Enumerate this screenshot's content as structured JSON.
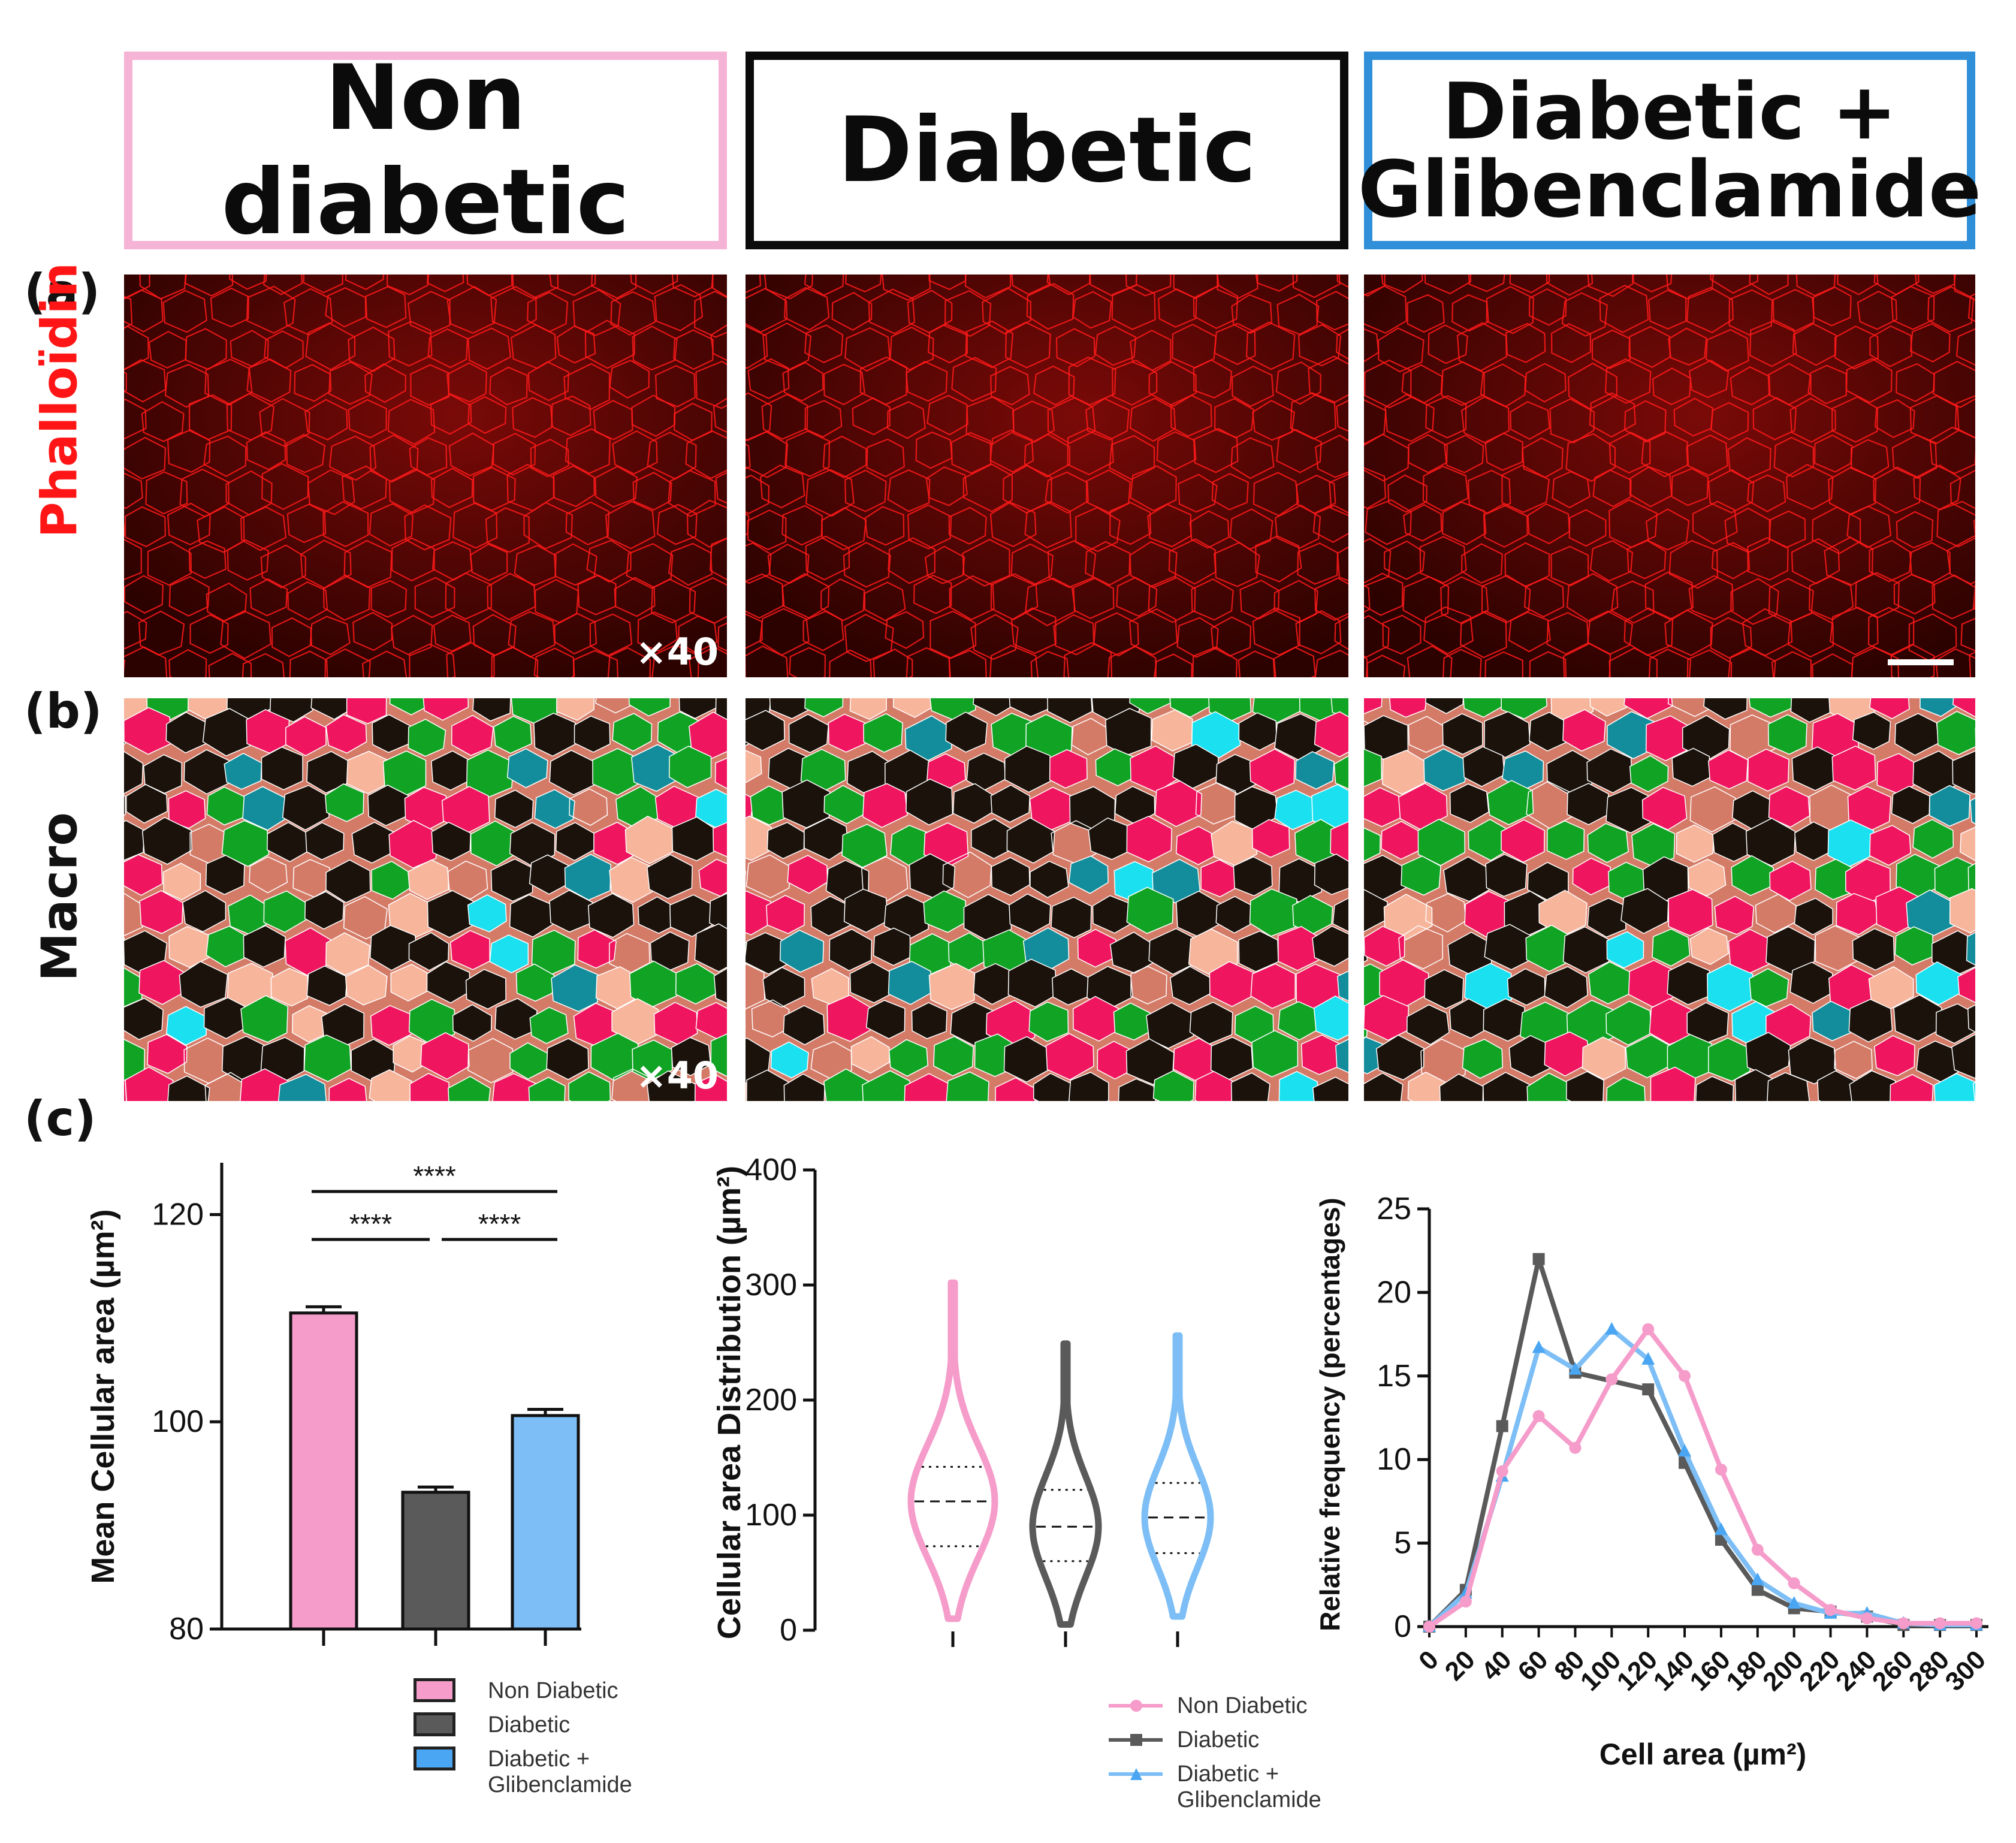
{
  "headers": [
    "Non diabetic",
    "Diabetic",
    "Diabetic +\nGlibenclamide"
  ],
  "panel_labels": {
    "a": "(a)",
    "b": "(b)",
    "c": "(c)"
  },
  "row_labels": {
    "phalloidin": "Phalloïdin",
    "macro": "Macro"
  },
  "magnifications": {
    "a": "×40",
    "b": "×40"
  },
  "colors": {
    "non_diabetic": "#f59ccb",
    "diabetic": "#5a5a5a",
    "glibenclamide": "#7cbef5",
    "stain_red": "#ff1a1a",
    "macro_bg": "#d47b68",
    "macro_palette": [
      "#1a120b",
      "#11a324",
      "#f0155f",
      "#f7b59c",
      "#138d9b",
      "#1ae0f0",
      "#6fe9c7",
      "#6ec3f5"
    ]
  },
  "chart_data": [
    {
      "type": "bar",
      "categories": [
        "Non Diabetic",
        "Diabetic",
        "Diabetic +\nGlibenclamide"
      ],
      "values": [
        110.5,
        93.2,
        100.6
      ],
      "errors": [
        0.6,
        0.5,
        0.6
      ],
      "ylabel": "Mean Cellular area (µm²)",
      "ylim": [
        80,
        125
      ],
      "yticks": [
        80,
        100,
        120
      ],
      "significance": [
        {
          "pair": [
            0,
            2
          ],
          "label": "****"
        },
        {
          "pair": [
            0,
            1
          ],
          "label": "****"
        },
        {
          "pair": [
            1,
            2
          ],
          "label": "****"
        }
      ],
      "legend": [
        "Non Diabetic",
        "Diabetic",
        "Diabetic +\nGlibenclamide"
      ]
    },
    {
      "type": "violin",
      "categories": [
        "Non Diabetic",
        "Diabetic",
        "Diabetic +\nGlibenclamide"
      ],
      "ylabel": "Cellular area Distribution (µm²)",
      "ylim": [
        0,
        400
      ],
      "yticks": [
        0,
        100,
        200,
        300,
        400
      ],
      "series": [
        {
          "min": 10,
          "max": 305,
          "q1": 73,
          "median": 112,
          "q3": 142
        },
        {
          "min": 5,
          "max": 252,
          "q1": 60,
          "median": 90,
          "q3": 122
        },
        {
          "min": 12,
          "max": 256,
          "q1": 67,
          "median": 98,
          "q3": 128
        }
      ],
      "legend": [
        "Non Diabetic",
        "Diabetic",
        "Diabetic +\nGlibenclamide"
      ]
    },
    {
      "type": "line",
      "x": [
        0,
        20,
        40,
        60,
        80,
        100,
        120,
        140,
        160,
        180,
        200,
        220,
        240,
        260,
        280,
        300
      ],
      "xlabel": "Cell area (µm²)",
      "ylabel": "Relative frequency (percentages)",
      "ylim": [
        0,
        25
      ],
      "yticks": [
        0,
        5,
        10,
        15,
        20,
        25
      ],
      "series": [
        {
          "name": "Non Diabetic",
          "values": [
            0,
            1.5,
            9.3,
            12.6,
            10.7,
            14.8,
            17.8,
            15.0,
            9.4,
            4.6,
            2.6,
            1.0,
            0.5,
            0.2,
            0.2,
            0.2
          ]
        },
        {
          "name": "Diabetic",
          "values": [
            0,
            2.2,
            12.0,
            22.0,
            15.2,
            null,
            14.2,
            9.8,
            5.2,
            2.2,
            1.1,
            0.9,
            0.6,
            0.1,
            0.1,
            0.1
          ]
        },
        {
          "name": "Diabetic +\nGlibenclamide",
          "values": [
            0,
            2.0,
            9.0,
            16.7,
            15.4,
            17.8,
            16.0,
            10.5,
            5.8,
            2.8,
            1.4,
            0.8,
            0.8,
            0.2,
            0.1,
            0.1
          ]
        }
      ],
      "legend": [
        "Non Diabetic",
        "Diabetic",
        "Diabetic +\nGlibenclamide"
      ]
    }
  ]
}
